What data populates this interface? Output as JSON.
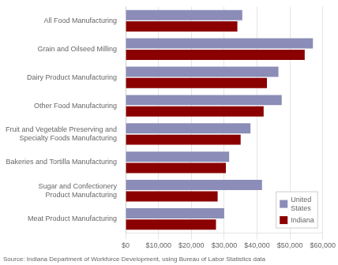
{
  "chart_data": {
    "type": "bar",
    "orientation": "horizontal",
    "categories": [
      "All Food Manufacturing",
      "Grain and Oilseed Milling",
      "Dairy Product Manufacturing",
      "Other Food Manufacturing",
      "Fruit and Vegetable Preserving and\nSpecialty Foods Manufacturing",
      "Bakeries and Tortilla Manufacturing",
      "Sugar and Confectionery\nProduct Manufacturing",
      "Meat Product Manufacturing"
    ],
    "series": [
      {
        "name": "United\nStates",
        "color": "#8B8DB8",
        "values": [
          35500,
          57000,
          46500,
          47500,
          38000,
          31500,
          41500,
          30000
        ]
      },
      {
        "name": "Indiana",
        "color": "#8B0000",
        "values": [
          34000,
          54500,
          43000,
          42000,
          35000,
          30500,
          28000,
          27500
        ]
      }
    ],
    "xlim": [
      0,
      60000
    ],
    "xticks": [
      {
        "value": 0,
        "label": "$0"
      },
      {
        "value": 10000,
        "label": "$10,000"
      },
      {
        "value": 20000,
        "label": "$20,000"
      },
      {
        "value": 30000,
        "label": "$30,000"
      },
      {
        "value": 40000,
        "label": "$40,000"
      },
      {
        "value": 50000,
        "label": "$50,000"
      },
      {
        "value": 60000,
        "label": "$60,000"
      }
    ],
    "grid": true,
    "legend": "lower right",
    "annotations": [
      "Source: Indiana Department of Workforce Development, using Bureau of Labor Statistics data"
    ]
  }
}
